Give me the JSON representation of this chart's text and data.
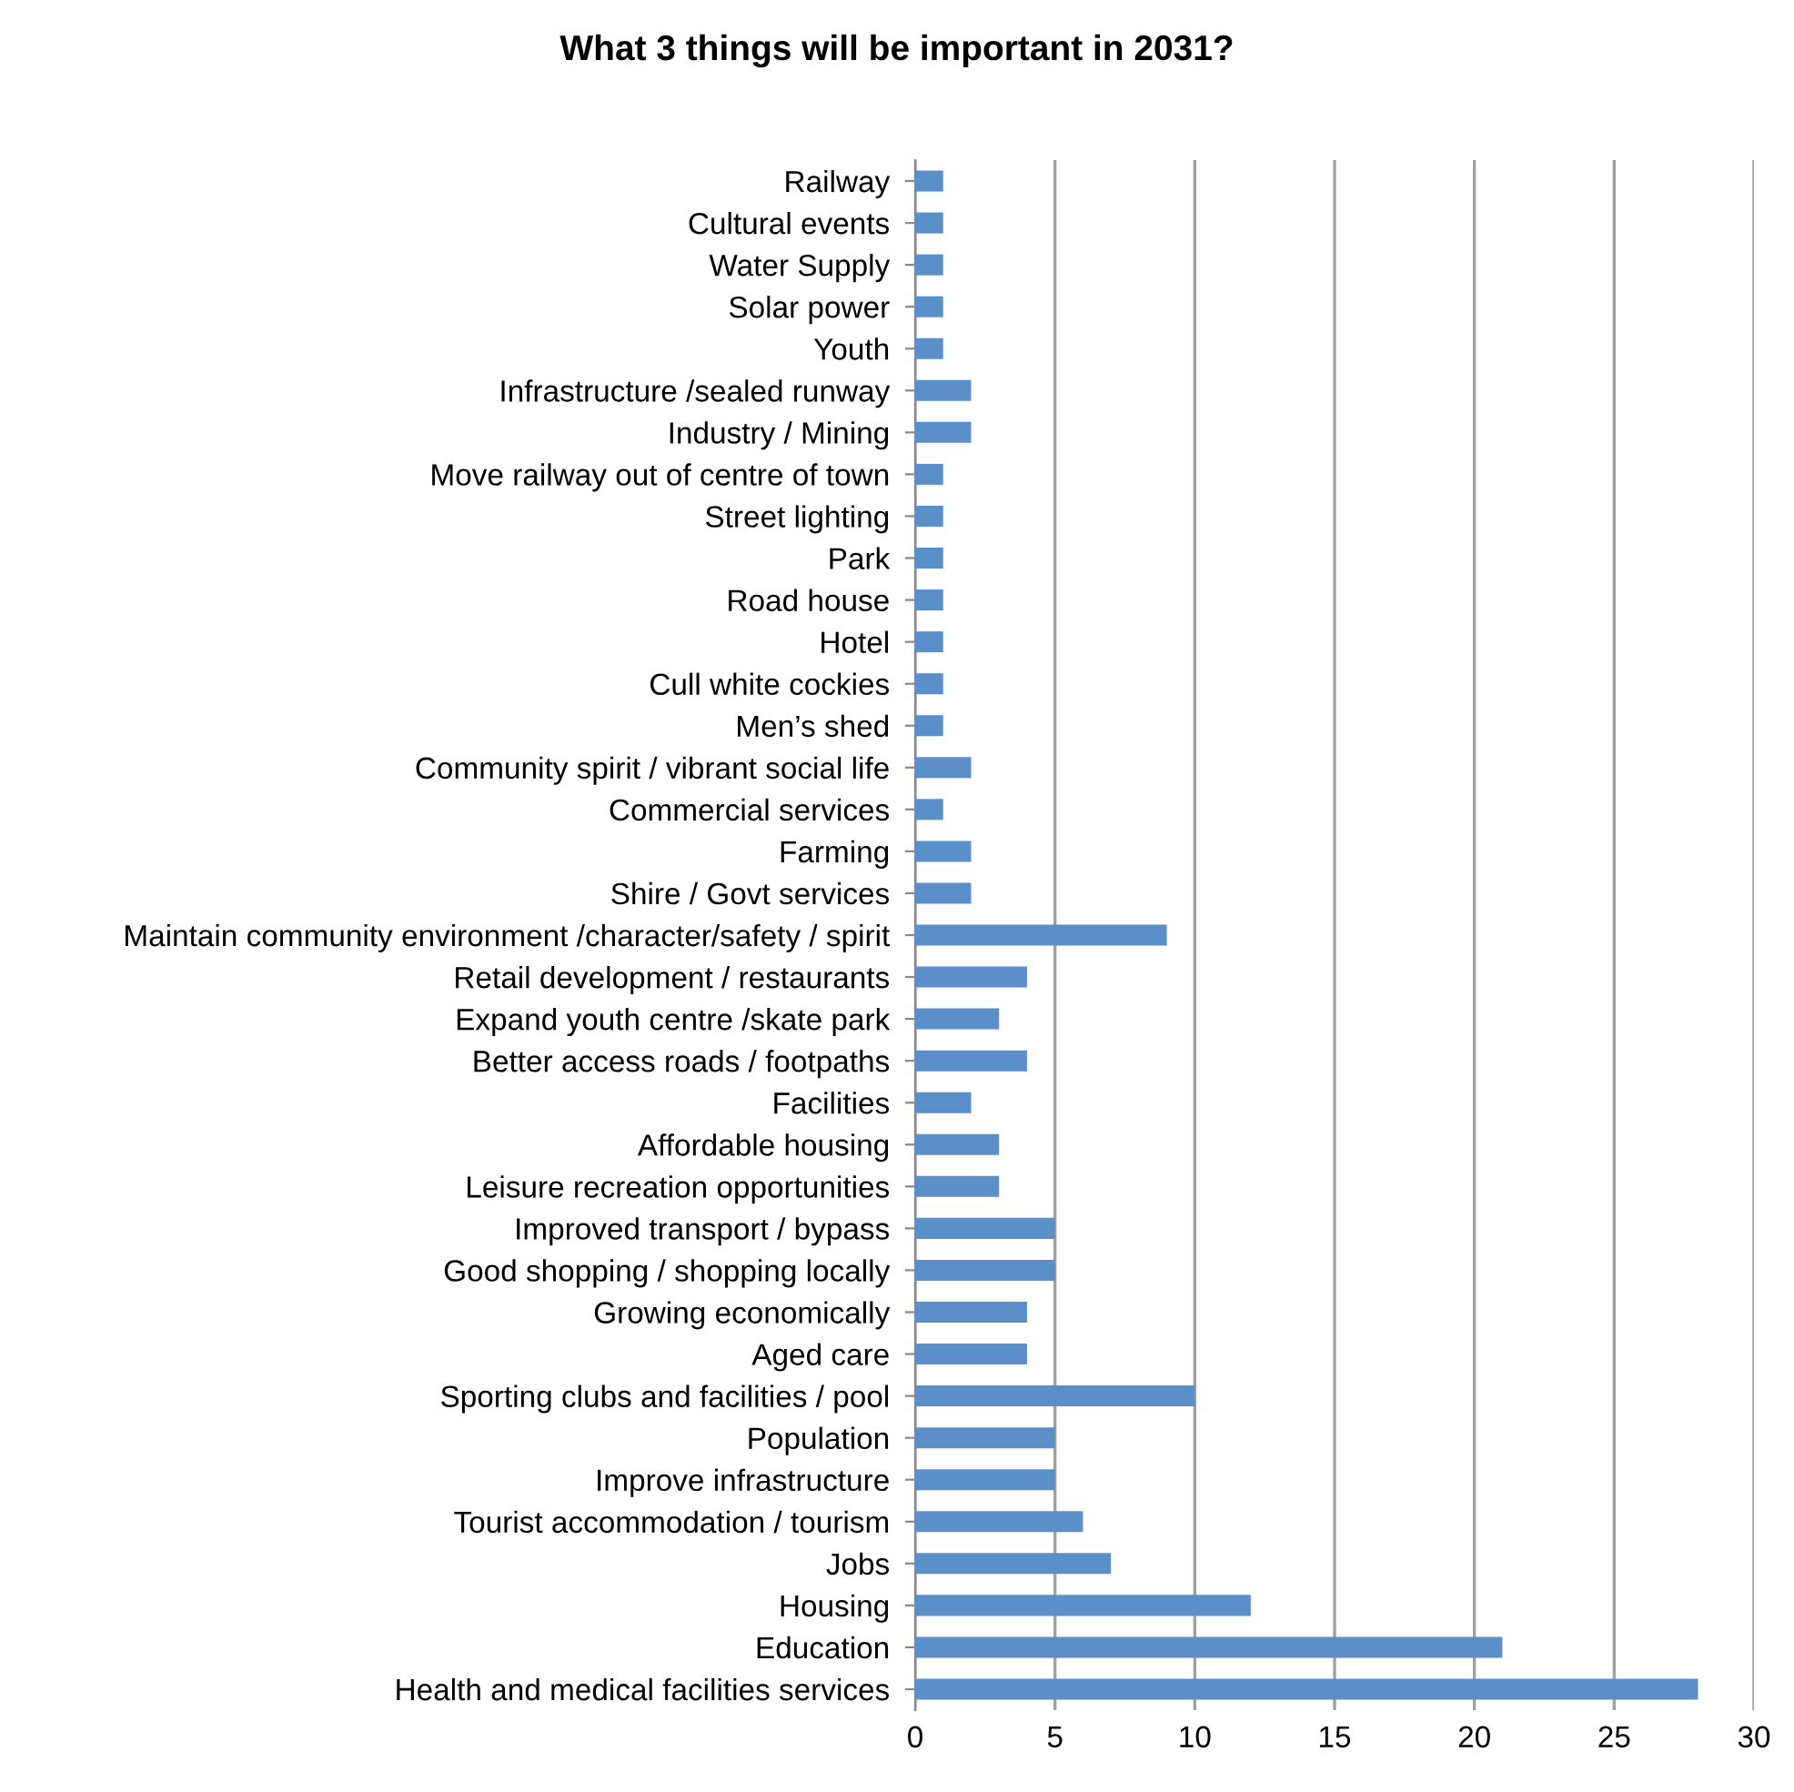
{
  "chart_data": {
    "type": "bar",
    "orientation": "horizontal",
    "title": "What 3 things will be important in 2031?",
    "categories": [
      "Railway",
      "Cultural events",
      "Water Supply",
      "Solar power",
      "Youth",
      "Infrastructure /sealed runway",
      "Industry / Mining",
      "Move railway out of centre of town",
      "Street lighting",
      "Park",
      "Road house",
      "Hotel",
      "Cull white cockies",
      "Men’s shed",
      "Community spirit / vibrant social life",
      "Commercial services",
      "Farming",
      "Shire / Govt services",
      "Maintain community environment /character/safety / spirit",
      "Retail development / restaurants",
      "Expand youth centre /skate park",
      "Better access roads / footpaths",
      "Facilities",
      "Affordable housing",
      "Leisure recreation opportunities",
      "Improved transport / bypass",
      "Good shopping / shopping locally",
      "Growing economically",
      "Aged care",
      "Sporting clubs and facilities / pool",
      "Population",
      "Improve infrastructure",
      "Tourist accommodation / tourism",
      "Jobs",
      "Housing",
      "Education",
      "Health and medical facilities services"
    ],
    "values": [
      1,
      1,
      1,
      1,
      1,
      2,
      2,
      1,
      1,
      1,
      1,
      1,
      1,
      1,
      2,
      1,
      2,
      2,
      9,
      4,
      3,
      4,
      2,
      3,
      3,
      5,
      5,
      4,
      4,
      10,
      5,
      5,
      6,
      7,
      12,
      21,
      28
    ],
    "color": "#5b8fc9",
    "xlim": [
      0,
      30
    ],
    "xticks": [
      0,
      5,
      10,
      15,
      20,
      25,
      30
    ],
    "grid": "x",
    "legend": false
  }
}
